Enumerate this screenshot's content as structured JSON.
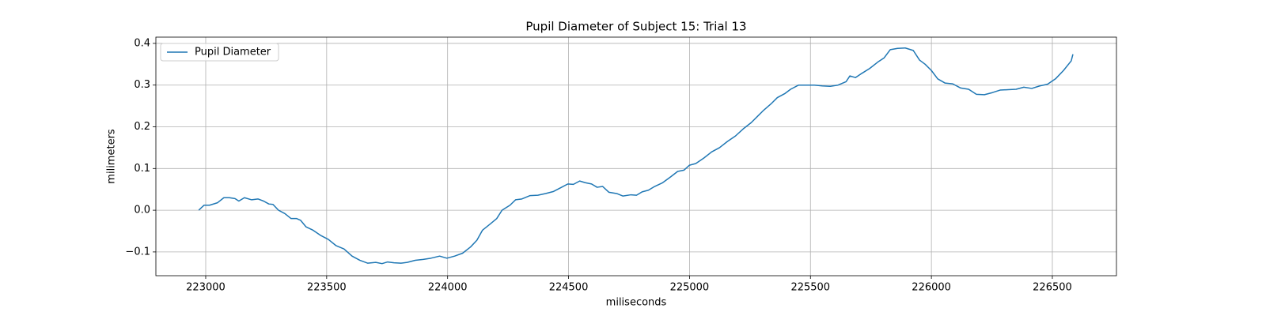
{
  "chart_data": {
    "type": "line",
    "title": "Pupil Diameter of Subject 15: Trial 13",
    "xlabel": "miliseconds",
    "ylabel": "milimeters",
    "x": [
      222971,
      222993,
      223016,
      223049,
      223075,
      223098,
      223121,
      223137,
      223160,
      223190,
      223216,
      223239,
      223261,
      223278,
      223301,
      223327,
      223353,
      223376,
      223392,
      223415,
      223444,
      223474,
      223507,
      223539,
      223572,
      223605,
      223637,
      223670,
      223703,
      223729,
      223752,
      223778,
      223807,
      223833,
      223866,
      223899,
      223931,
      223967,
      223997,
      224029,
      224062,
      224095,
      224121,
      224144,
      224176,
      224203,
      224225,
      224258,
      224281,
      224307,
      224340,
      224373,
      224405,
      224438,
      224471,
      224497,
      224520,
      224546,
      224569,
      224595,
      224618,
      224641,
      224667,
      224699,
      224725,
      224758,
      224781,
      224804,
      224830,
      224856,
      224889,
      224922,
      224951,
      224977,
      225000,
      225026,
      225059,
      225092,
      225124,
      225157,
      225190,
      225222,
      225255,
      225281,
      225307,
      225337,
      225363,
      225395,
      225418,
      225451,
      225484,
      225516,
      225549,
      225582,
      225614,
      225647,
      225663,
      225686,
      225712,
      225745,
      225778,
      225804,
      225830,
      225860,
      225892,
      225925,
      225951,
      225974,
      226000,
      226026,
      226056,
      226088,
      226121,
      226154,
      226186,
      226219,
      226252,
      226284,
      226317,
      226350,
      226382,
      226415,
      226448,
      226480,
      226513,
      226546,
      226578,
      226585
    ],
    "series": [
      {
        "name": "Pupil Diameter",
        "color": "#1f77b4",
        "values": [
          0.0,
          0.012,
          0.012,
          0.018,
          0.03,
          0.03,
          0.028,
          0.022,
          0.03,
          0.025,
          0.027,
          0.022,
          0.015,
          0.014,
          0.0,
          -0.008,
          -0.02,
          -0.02,
          -0.024,
          -0.04,
          -0.048,
          -0.06,
          -0.07,
          -0.085,
          -0.093,
          -0.11,
          -0.12,
          -0.127,
          -0.125,
          -0.128,
          -0.124,
          -0.126,
          -0.127,
          -0.125,
          -0.12,
          -0.118,
          -0.115,
          -0.11,
          -0.115,
          -0.11,
          -0.103,
          -0.088,
          -0.072,
          -0.048,
          -0.033,
          -0.02,
          0.0,
          0.012,
          0.025,
          0.027,
          0.035,
          0.036,
          0.04,
          0.045,
          0.055,
          0.063,
          0.062,
          0.07,
          0.066,
          0.063,
          0.055,
          0.057,
          0.043,
          0.04,
          0.034,
          0.037,
          0.036,
          0.044,
          0.048,
          0.057,
          0.066,
          0.08,
          0.093,
          0.096,
          0.108,
          0.112,
          0.125,
          0.14,
          0.15,
          0.165,
          0.178,
          0.195,
          0.21,
          0.225,
          0.24,
          0.255,
          0.27,
          0.28,
          0.29,
          0.3,
          0.3,
          0.3,
          0.298,
          0.297,
          0.3,
          0.308,
          0.322,
          0.318,
          0.328,
          0.34,
          0.355,
          0.365,
          0.385,
          0.388,
          0.389,
          0.383,
          0.36,
          0.35,
          0.335,
          0.315,
          0.305,
          0.303,
          0.293,
          0.29,
          0.278,
          0.277,
          0.282,
          0.288,
          0.289,
          0.29,
          0.295,
          0.292,
          0.298,
          0.302,
          0.315,
          0.335,
          0.358,
          0.374
        ]
      }
    ],
    "xlim": [
      222794,
      226765
    ],
    "xticks": [
      223000,
      223500,
      224000,
      224500,
      225000,
      225500,
      226000,
      226500
    ],
    "ylim": [
      -0.157,
      0.415
    ],
    "yticks": [
      {
        "value": -0.1,
        "label": "−0.1"
      },
      {
        "value": 0,
        "label": "0.0"
      },
      0.1,
      0.2,
      0.3,
      0.4
    ],
    "grid": true,
    "legend": "upper left"
  }
}
